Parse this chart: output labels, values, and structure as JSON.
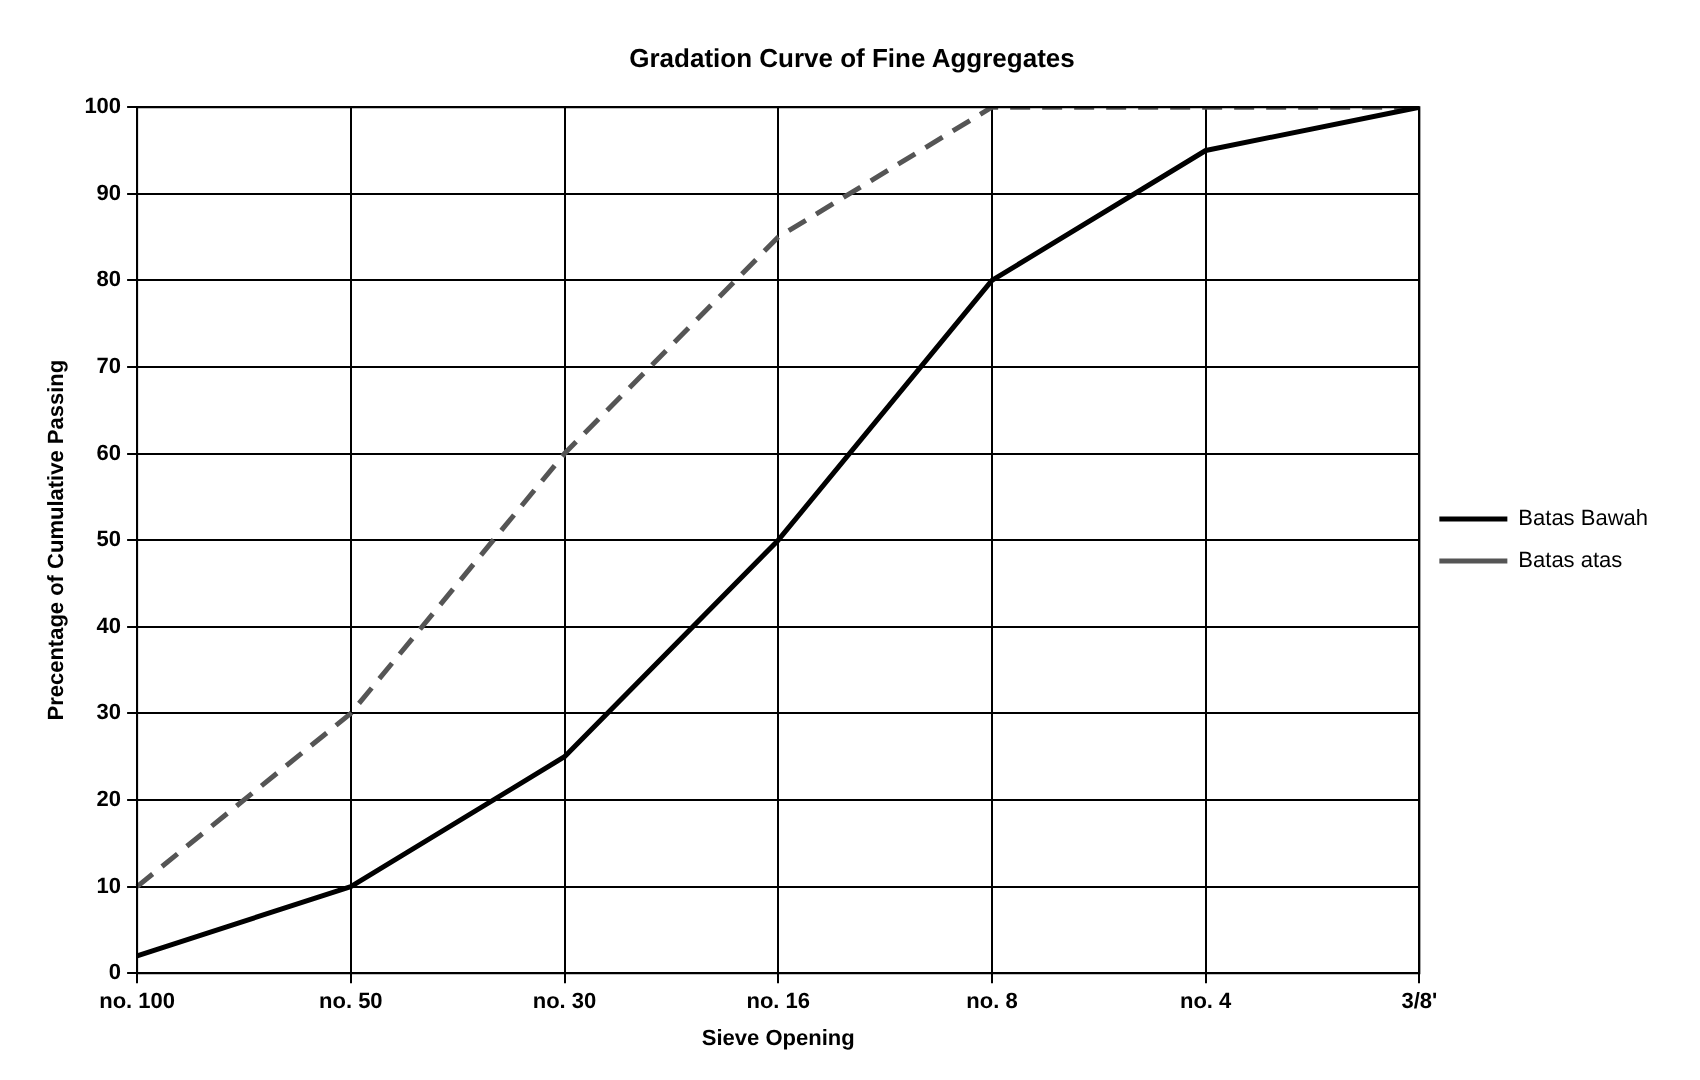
{
  "chart_data": {
    "type": "line",
    "title": "Gradation Curve of Fine Aggregates",
    "xlabel": "Sieve Opening",
    "ylabel": "Precentage of Cumulative Passing",
    "categories": [
      "no. 100",
      "no. 50",
      "no. 30",
      "no. 16",
      "no. 8",
      "no. 4",
      "3/8'"
    ],
    "series": [
      {
        "name": "Batas Bawah",
        "color": "#000000",
        "line_style": "solid",
        "values": [
          2,
          10,
          25,
          50,
          80,
          95,
          100
        ]
      },
      {
        "name": "Batas atas",
        "color": "#555555",
        "line_style": "dashed",
        "values": [
          10,
          30,
          60,
          85,
          100,
          100,
          100
        ]
      }
    ],
    "ylim": [
      0,
      100
    ],
    "yticks": [
      0,
      10,
      20,
      30,
      40,
      50,
      60,
      70,
      80,
      90,
      100
    ],
    "grid": true,
    "legend": "right",
    "marker": "none"
  }
}
